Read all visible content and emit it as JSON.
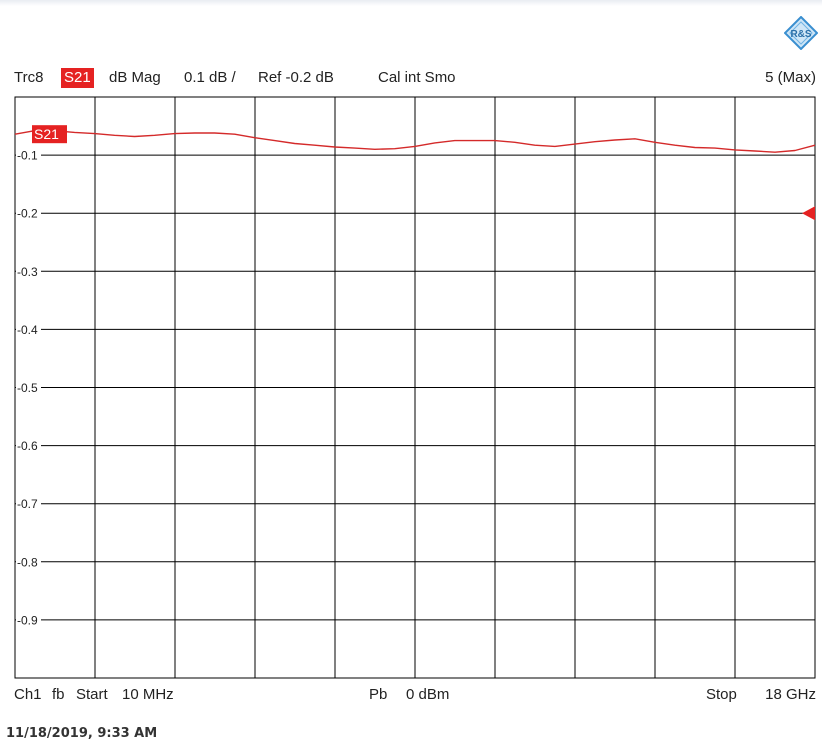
{
  "header": {
    "trace_name": "Trc8",
    "trace_param": "S21",
    "format": "dB Mag",
    "scale": "0.1 dB /",
    "ref": "Ref -0.2 dB",
    "status": "Cal int Smo",
    "smoothing": "5 (Max)"
  },
  "footer": {
    "channel": "Ch1",
    "mode": "fb",
    "start_label": "Start",
    "start_value": "10 MHz",
    "power_label": "Pb",
    "power_value": "0 dBm",
    "stop_label": "Stop",
    "stop_value": "18 GHz"
  },
  "timestamp": "11/18/2019, 9:33 AM",
  "logo_text": "R&S",
  "colors": {
    "trace": "#d42a2a",
    "marker": "#e52222",
    "grid": "#000000"
  },
  "chart_data": {
    "type": "line",
    "title": "",
    "xlabel": "",
    "ylabel": "",
    "xlim": [
      0.01,
      18
    ],
    "ylim": [
      -1.0,
      0.0
    ],
    "grid": true,
    "legend": "none",
    "y_ticks": [
      {
        "value": -0.1,
        "label": "-0.1"
      },
      {
        "value": -0.2,
        "label": "-0.2"
      },
      {
        "value": -0.3,
        "label": "-0.3"
      },
      {
        "value": -0.4,
        "label": "-0.4"
      },
      {
        "value": -0.5,
        "label": "-0.5"
      },
      {
        "value": -0.6,
        "label": "-0.6"
      },
      {
        "value": -0.7,
        "label": "-0.7"
      },
      {
        "value": -0.8,
        "label": "-0.8"
      },
      {
        "value": -0.9,
        "label": "-0.9"
      }
    ],
    "x_divisions": 10,
    "ref_value": -0.2,
    "series": [
      {
        "name": "S21",
        "x": [
          0.01,
          0.45,
          0.9,
          1.35,
          1.8,
          2.25,
          2.7,
          3.15,
          3.6,
          4.05,
          4.5,
          4.95,
          5.4,
          5.85,
          6.3,
          6.75,
          7.2,
          7.65,
          8.1,
          8.55,
          9.0,
          9.45,
          9.9,
          10.35,
          10.8,
          11.25,
          11.7,
          12.15,
          12.6,
          13.05,
          13.5,
          13.95,
          14.4,
          14.85,
          15.3,
          15.75,
          16.2,
          16.65,
          17.1,
          17.55,
          18.0
        ],
        "y": [
          -0.064,
          -0.058,
          -0.058,
          -0.061,
          -0.063,
          -0.066,
          -0.068,
          -0.066,
          -0.063,
          -0.062,
          -0.062,
          -0.064,
          -0.07,
          -0.075,
          -0.08,
          -0.083,
          -0.086,
          -0.088,
          -0.09,
          -0.089,
          -0.085,
          -0.079,
          -0.075,
          -0.075,
          -0.075,
          -0.078,
          -0.083,
          -0.085,
          -0.081,
          -0.077,
          -0.074,
          -0.072,
          -0.078,
          -0.083,
          -0.087,
          -0.088,
          -0.091,
          -0.093,
          -0.095,
          -0.092,
          -0.083
        ]
      }
    ]
  }
}
